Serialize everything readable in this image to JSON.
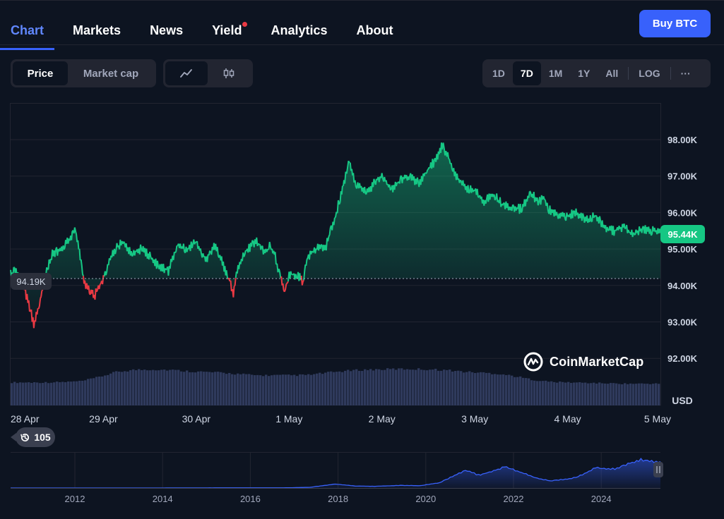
{
  "nav": {
    "tabs": [
      {
        "label": "Chart",
        "active": true
      },
      {
        "label": "Markets"
      },
      {
        "label": "News"
      },
      {
        "label": "Yield",
        "notification": true
      },
      {
        "label": "Analytics"
      },
      {
        "label": "About"
      }
    ],
    "buy_button": "Buy BTC"
  },
  "toolbar": {
    "view_toggle": [
      "Price",
      "Market cap"
    ],
    "view_selected": "Price",
    "chart_style_icons": [
      "line-chart-icon",
      "candlestick-icon"
    ],
    "range_options": [
      "1D",
      "7D",
      "1M",
      "1Y",
      "All",
      "LOG"
    ],
    "range_selected": "7D",
    "more_label": "···"
  },
  "colors": {
    "accent": "#3861fb",
    "up": "#16c784",
    "down": "#ea3943",
    "background": "#0d1421",
    "volume": "#2f3a5c"
  },
  "chart_data": {
    "type": "line",
    "currency_label": "USD",
    "y_ticks": [
      "92.00K",
      "93.00K",
      "94.00K",
      "95.00K",
      "96.00K",
      "97.00K",
      "98.00K"
    ],
    "ylim": [
      91000,
      99000
    ],
    "x_ticks": [
      "28 Apr",
      "29 Apr",
      "30 Apr",
      "1 May",
      "2 May",
      "3 May",
      "4 May",
      "5 May"
    ],
    "current_price_label": "95.44K",
    "reference_price_label": "94.19K",
    "reference_price": 94190,
    "series": [
      {
        "points": [
          [
            0,
            94.3
          ],
          [
            0.05,
            94.4
          ],
          [
            0.15,
            93.9
          ],
          [
            0.25,
            92.95
          ],
          [
            0.32,
            93.6
          ],
          [
            0.38,
            94.3
          ],
          [
            0.45,
            94.85
          ],
          [
            0.55,
            95.0
          ],
          [
            0.62,
            95.25
          ],
          [
            0.7,
            95.5
          ],
          [
            0.75,
            94.75
          ],
          [
            0.8,
            94.0
          ],
          [
            0.85,
            93.9
          ],
          [
            0.9,
            93.7
          ],
          [
            1.0,
            94.2
          ],
          [
            1.1,
            94.9
          ],
          [
            1.2,
            95.2
          ],
          [
            1.3,
            94.9
          ],
          [
            1.4,
            95.0
          ],
          [
            1.5,
            94.8
          ],
          [
            1.6,
            94.5
          ],
          [
            1.7,
            94.4
          ],
          [
            1.8,
            95.1
          ],
          [
            1.9,
            95.0
          ],
          [
            2.0,
            95.2
          ],
          [
            2.1,
            94.7
          ],
          [
            2.2,
            95.1
          ],
          [
            2.3,
            94.5
          ],
          [
            2.35,
            94.2
          ],
          [
            2.4,
            93.8
          ],
          [
            2.45,
            94.5
          ],
          [
            2.55,
            95.0
          ],
          [
            2.65,
            95.2
          ],
          [
            2.75,
            94.9
          ],
          [
            2.8,
            95.1
          ],
          [
            2.85,
            94.8
          ],
          [
            2.9,
            94.3
          ],
          [
            2.95,
            93.8
          ],
          [
            3.0,
            94.3
          ],
          [
            3.08,
            94.3
          ],
          [
            3.15,
            94.1
          ],
          [
            3.2,
            94.8
          ],
          [
            3.3,
            95.0
          ],
          [
            3.4,
            95.1
          ],
          [
            3.5,
            95.9
          ],
          [
            3.55,
            96.4
          ],
          [
            3.6,
            96.9
          ],
          [
            3.65,
            97.4
          ],
          [
            3.7,
            96.9
          ],
          [
            3.75,
            96.7
          ],
          [
            3.85,
            96.6
          ],
          [
            3.95,
            96.9
          ],
          [
            4.0,
            97.0
          ],
          [
            4.1,
            96.6
          ],
          [
            4.2,
            96.9
          ],
          [
            4.3,
            97.0
          ],
          [
            4.4,
            96.8
          ],
          [
            4.5,
            97.2
          ],
          [
            4.6,
            97.5
          ],
          [
            4.65,
            97.85
          ],
          [
            4.7,
            97.6
          ],
          [
            4.8,
            97.0
          ],
          [
            4.9,
            96.7
          ],
          [
            5.0,
            96.6
          ],
          [
            5.1,
            96.3
          ],
          [
            5.2,
            96.5
          ],
          [
            5.3,
            96.2
          ],
          [
            5.4,
            96.1
          ],
          [
            5.5,
            96.1
          ],
          [
            5.6,
            96.5
          ],
          [
            5.7,
            96.3
          ],
          [
            5.75,
            96.4
          ],
          [
            5.8,
            96.1
          ],
          [
            5.9,
            95.9
          ],
          [
            6.0,
            95.9
          ],
          [
            6.1,
            96.0
          ],
          [
            6.2,
            95.8
          ],
          [
            6.3,
            95.9
          ],
          [
            6.4,
            95.6
          ],
          [
            6.5,
            95.5
          ],
          [
            6.6,
            95.6
          ],
          [
            6.7,
            95.4
          ],
          [
            6.8,
            95.55
          ],
          [
            6.9,
            95.5
          ],
          [
            7.0,
            95.44
          ]
        ]
      }
    ],
    "volume_profile": [
      0.55,
      0.55,
      0.55,
      0.56,
      0.58,
      0.68,
      0.8,
      0.85,
      0.86,
      0.85,
      0.82,
      0.8,
      0.78,
      0.75,
      0.72,
      0.72,
      0.72,
      0.73,
      0.78,
      0.82,
      0.85,
      0.86,
      0.87,
      0.87,
      0.86,
      0.84,
      0.8,
      0.78,
      0.75,
      0.68,
      0.6,
      0.56,
      0.55,
      0.54,
      0.53,
      0.52,
      0.52,
      0.52
    ],
    "overview": {
      "x_ticks": [
        "2012",
        "2014",
        "2016",
        "2018",
        "2020",
        "2022",
        "2024"
      ]
    }
  },
  "watermark": "CoinMarketCap",
  "history_count": "105"
}
